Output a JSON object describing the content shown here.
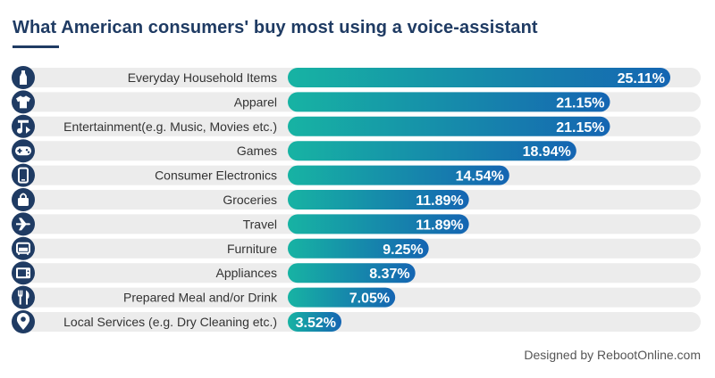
{
  "title": "What American consumers' buy most using a voice-assistant",
  "credit": "Designed by RebootOnline.com",
  "colors": {
    "title": "#1f3b63",
    "track": "#ececec",
    "bar_start": "#17b3a3",
    "bar_end": "#1565b2",
    "icon_bg": "#1f3b63",
    "value_text": "#ffffff"
  },
  "chart_data": {
    "type": "bar",
    "orientation": "horizontal",
    "title": "What American consumers' buy most using a voice-assistant",
    "categories": [
      "Everyday Household Items",
      "Apparel",
      "Entertainment(e.g. Music, Movies etc.)",
      "Games",
      "Consumer Electronics",
      "Groceries",
      "Travel",
      "Furniture",
      "Appliances",
      "Prepared Meal and/or Drink",
      "Local Services (e.g. Dry Cleaning etc.)"
    ],
    "values": [
      25.11,
      21.15,
      21.15,
      18.94,
      14.54,
      11.89,
      11.89,
      9.25,
      8.37,
      7.05,
      3.52
    ],
    "value_labels": [
      "25.11%",
      "21.15%",
      "21.15%",
      "18.94%",
      "14.54%",
      "11.89%",
      "11.89%",
      "9.25%",
      "8.37%",
      "7.05%",
      "3.52%"
    ],
    "icons": [
      "bottle-icon",
      "tshirt-icon",
      "music-note-icon",
      "gamepad-icon",
      "smartphone-icon",
      "shopping-bag-icon",
      "airplane-icon",
      "sofa-icon",
      "microwave-icon",
      "cutlery-icon",
      "map-pin-icon"
    ],
    "xlim": [
      0,
      30
    ],
    "xlabel": "",
    "ylabel": "",
    "grid": false,
    "legend": "none"
  }
}
